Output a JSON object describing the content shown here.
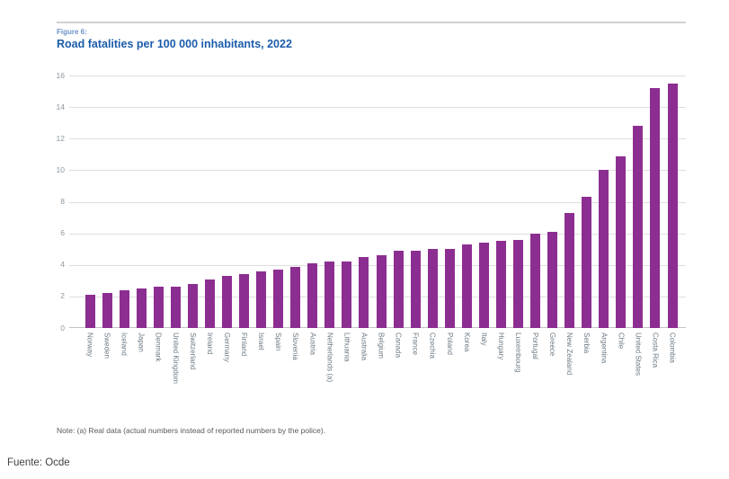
{
  "figure": {
    "label": "Figure 6:",
    "title": "Road fatalities per 100 000 inhabitants, 2022",
    "note": "Note: (a) Real data (actual numbers instead of reported numbers by the police).",
    "source": "Fuente: Ocde"
  },
  "colors": {
    "bar": "#8c2e91",
    "title_blue": "#1b5cab",
    "figure_label_blue": "#6a93c8",
    "gridline": "#dedede",
    "axis_line": "#c4c4c4",
    "tick_text": "#8d98a1",
    "category_text": "#6e7b85",
    "note_text": "#5a5a5a",
    "top_rule": "#d2d2d2"
  },
  "chart_data": {
    "type": "bar",
    "title": "Road fatalities per 100 000 inhabitants, 2022",
    "xlabel": "",
    "ylabel": "",
    "ylim": [
      0,
      16
    ],
    "yticks": [
      0,
      2,
      4,
      6,
      8,
      10,
      12,
      14,
      16
    ],
    "grid": true,
    "legend": false,
    "bar_color": "#8c2e91",
    "categories": [
      "Norway",
      "Sweden",
      "Iceland",
      "Japan",
      "Denmark",
      "United Kingdom",
      "Switzerland",
      "Ireland",
      "Germany",
      "Finland",
      "Israel",
      "Spain",
      "Slovenia",
      "Austria",
      "Netherlands (a)",
      "Lithuania",
      "Australia",
      "Belgium",
      "Canada",
      "France",
      "Czechia",
      "Poland",
      "Korea",
      "Italy",
      "Hungary",
      "Luxembourg",
      "Portugal",
      "Greece",
      "New Zealand",
      "Serbia",
      "Argentina",
      "Chile",
      "United States",
      "Costa Rica",
      "Colombia"
    ],
    "values": [
      2.1,
      2.2,
      2.4,
      2.5,
      2.6,
      2.6,
      2.8,
      3.1,
      3.3,
      3.4,
      3.6,
      3.7,
      3.9,
      4.1,
      4.2,
      4.2,
      4.5,
      4.6,
      4.9,
      4.9,
      5.0,
      5.0,
      5.3,
      5.4,
      5.5,
      5.6,
      6.0,
      6.1,
      7.3,
      8.3,
      10.0,
      10.9,
      12.8,
      15.2,
      15.5
    ]
  }
}
